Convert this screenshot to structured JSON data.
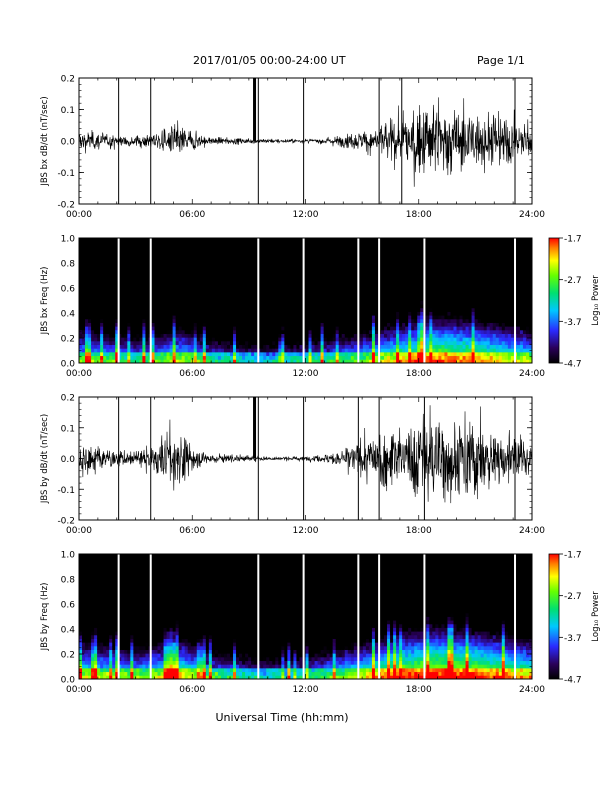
{
  "header": {
    "title": "2017/01/05  00:00-24:00 UT",
    "page": "Page 1/1"
  },
  "xlabel": "Universal Time (hh:mm)",
  "x_ticks": [
    "00:00",
    "06:00",
    "12:00",
    "18:00",
    "24:00"
  ],
  "colorbar": {
    "label": "Log₁₀ Power",
    "ticks": [
      "-1.7",
      "-2.7",
      "-3.7",
      "-4.7"
    ],
    "range": [
      -4.7,
      -1.7
    ]
  },
  "chart_data": [
    {
      "type": "line",
      "ylabel": "JBS bx dB/dt (nT/sec)",
      "xlim_hours": [
        0,
        24
      ],
      "ylim": [
        -0.2,
        0.2
      ],
      "y_ticks": [
        "0.2",
        "0.1",
        "0.0",
        "-0.1",
        "-0.2"
      ],
      "vertical_markers_hours": [
        2.1,
        3.8,
        9.5,
        11.9,
        15.9,
        17.1,
        23.1
      ],
      "spike_hour": 9.3,
      "amplitude_envelope": {
        "x_hours": [
          0,
          1,
          2,
          3,
          4,
          4.5,
          5,
          5.5,
          6,
          6.5,
          7,
          8,
          9,
          10,
          11,
          12,
          13,
          14,
          15,
          16,
          17,
          18,
          19,
          20,
          21,
          22,
          23,
          24
        ],
        "amplitude": [
          0.05,
          0.045,
          0.03,
          0.025,
          0.04,
          0.055,
          0.09,
          0.07,
          0.05,
          0.03,
          0.02,
          0.015,
          0.012,
          0.01,
          0.008,
          0.01,
          0.015,
          0.03,
          0.05,
          0.08,
          0.13,
          0.18,
          0.2,
          0.16,
          0.15,
          0.14,
          0.12,
          0.1
        ]
      }
    },
    {
      "type": "heatmap",
      "ylabel": "JBS bx Freq (Hz)",
      "xlim_hours": [
        0,
        24
      ],
      "ylim": [
        0.0,
        1.0
      ],
      "y_ticks": [
        "1.0",
        "0.8",
        "0.6",
        "0.4",
        "0.2",
        "0.0"
      ],
      "vertical_markers_hours": [
        2.1,
        3.8,
        9.5,
        11.9,
        14.8,
        15.9,
        18.3,
        23.1
      ],
      "low_freq_power_hours": [
        0,
        3,
        5.5,
        7,
        10,
        12,
        15,
        17,
        19,
        21,
        24
      ],
      "low_freq_power_level": [
        -3.0,
        -3.4,
        -2.9,
        -3.5,
        -3.8,
        -3.6,
        -3.1,
        -2.6,
        -2.2,
        -2.4,
        -2.9
      ]
    },
    {
      "type": "line",
      "ylabel": "JBS by dB/dt (nT/sec)",
      "xlim_hours": [
        0,
        24
      ],
      "ylim": [
        -0.2,
        0.2
      ],
      "y_ticks": [
        "0.2",
        "0.1",
        "0.0",
        "-0.1",
        "-0.2"
      ],
      "vertical_markers_hours": [
        2.1,
        3.8,
        9.5,
        11.9,
        14.8,
        15.9,
        18.3,
        23.1
      ],
      "spike_hour": 9.3,
      "amplitude_envelope": {
        "x_hours": [
          0,
          1,
          2,
          3,
          4,
          4.5,
          5,
          5.5,
          6,
          6.5,
          7,
          8,
          9,
          10,
          11,
          12,
          13,
          14,
          15,
          16,
          17,
          18,
          19,
          20,
          21,
          22,
          23,
          24
        ],
        "amplitude": [
          0.08,
          0.07,
          0.04,
          0.04,
          0.07,
          0.12,
          0.18,
          0.12,
          0.06,
          0.035,
          0.025,
          0.02,
          0.015,
          0.01,
          0.008,
          0.01,
          0.02,
          0.05,
          0.1,
          0.14,
          0.16,
          0.2,
          0.2,
          0.2,
          0.2,
          0.15,
          0.12,
          0.08
        ]
      }
    },
    {
      "type": "heatmap",
      "ylabel": "JBS by Freq (Hz)",
      "xlim_hours": [
        0,
        24
      ],
      "ylim": [
        0.0,
        1.0
      ],
      "y_ticks": [
        "1.0",
        "0.8",
        "0.6",
        "0.4",
        "0.2",
        "0.0"
      ],
      "vertical_markers_hours": [
        2.1,
        3.8,
        9.5,
        11.9,
        14.8,
        15.9,
        18.3,
        23.1
      ],
      "low_freq_power_hours": [
        0,
        3,
        5.5,
        7,
        10,
        12,
        15,
        17,
        19,
        21,
        24
      ],
      "low_freq_power_level": [
        -2.8,
        -3.1,
        -2.6,
        -3.3,
        -3.7,
        -3.5,
        -2.8,
        -2.2,
        -1.9,
        -2.1,
        -2.6
      ]
    }
  ]
}
